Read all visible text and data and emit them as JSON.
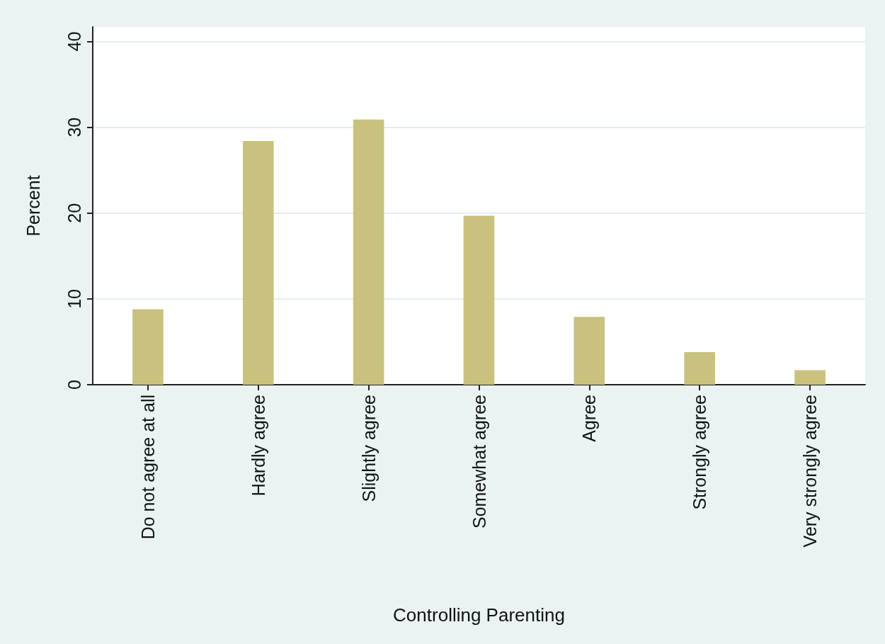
{
  "chart_data": {
    "type": "bar",
    "xlabel": "Controlling Parenting",
    "ylabel": "Percent",
    "categories": [
      "Do not agree at all",
      "Hardly agree",
      "Slightly agree",
      "Somewhat agree",
      "Agree",
      "Strongly agree",
      "Very strongly agree"
    ],
    "values": [
      8.8,
      28.4,
      30.9,
      19.7,
      7.9,
      3.8,
      1.7
    ],
    "color": "#c9c27e",
    "ylim": [
      0,
      41.7
    ],
    "yticks": [
      0,
      10,
      20,
      30,
      40
    ],
    "grid": "y"
  }
}
